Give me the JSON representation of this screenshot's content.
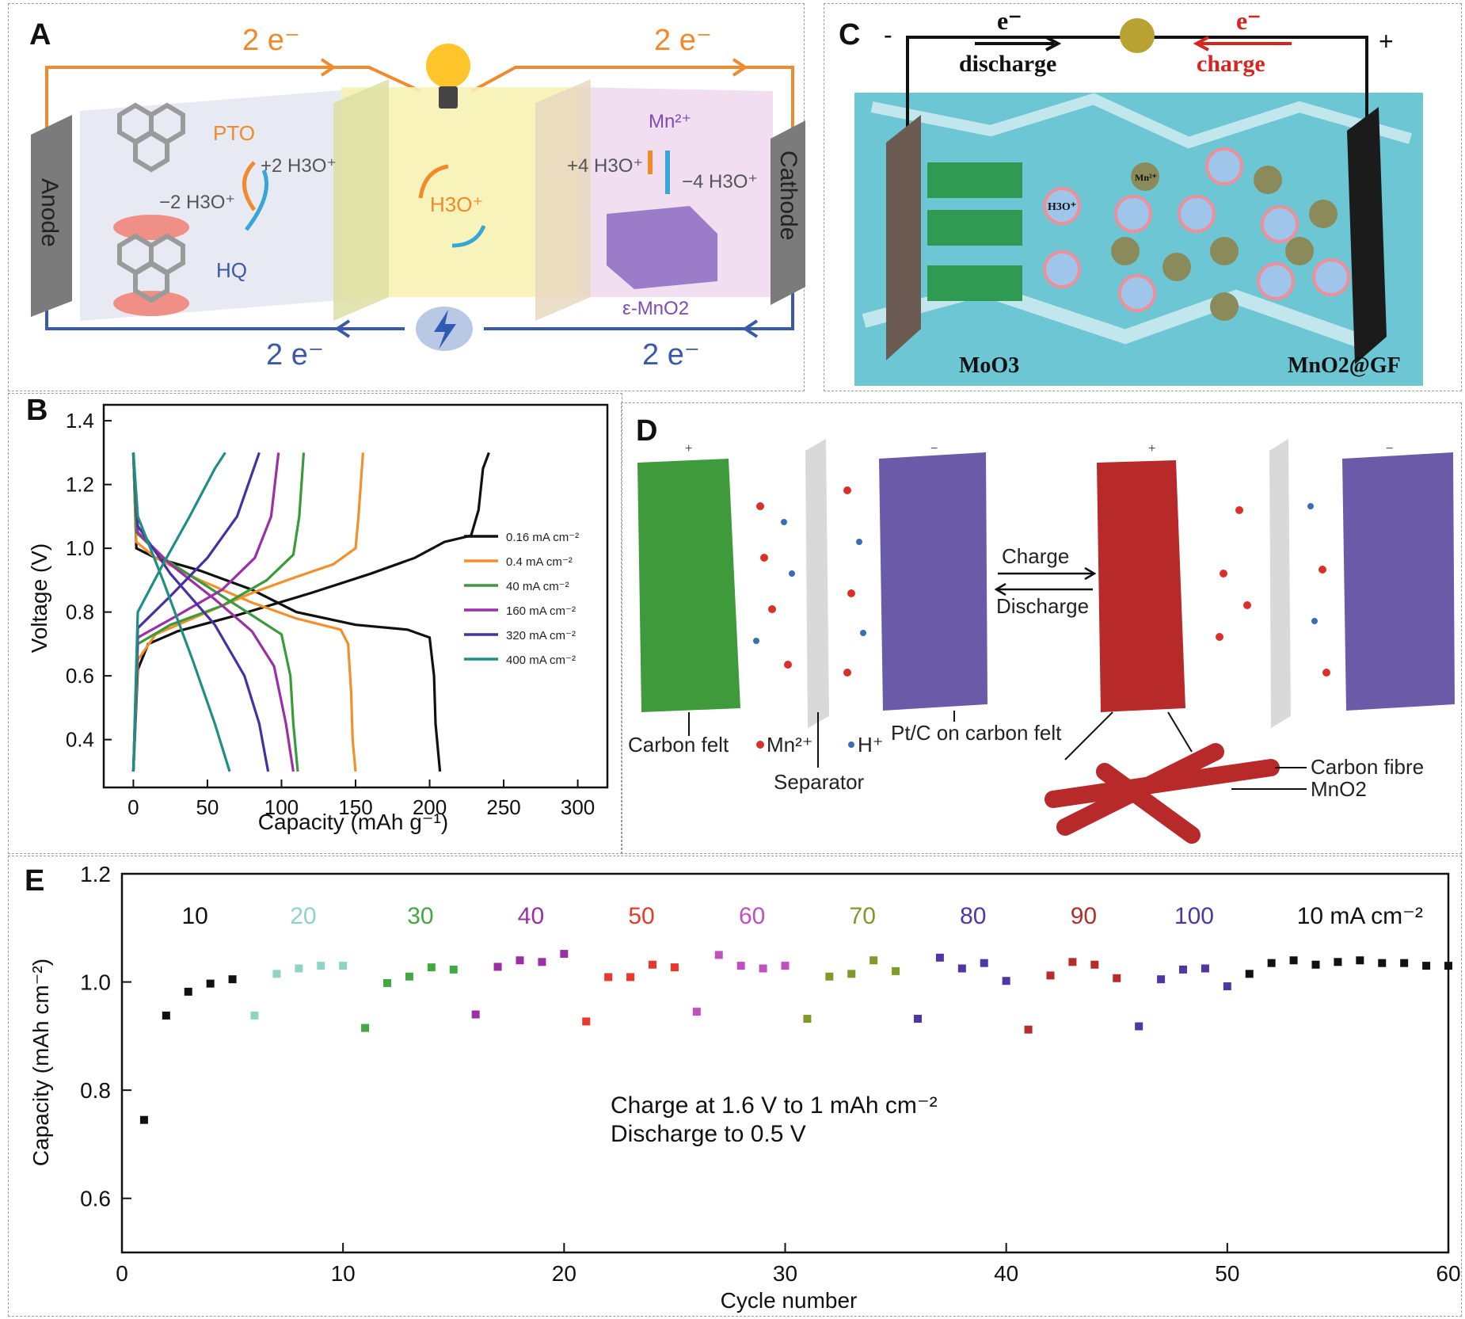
{
  "figure": {
    "panel_a": {
      "label": "A",
      "electron_top_left": "2 e⁻",
      "electron_top_right": "2 e⁻",
      "electron_bottom_left": "2 e⁻",
      "electron_bottom_right": "2 e⁻",
      "anode": "Anode",
      "cathode": "Cathode",
      "pto": "PTO",
      "hq": "HQ",
      "plus_2h3o": "+2 H3O⁺",
      "minus_2h3o": "−2 H3O⁺",
      "h3o": "H3O⁺",
      "mn2": "Mn²⁺",
      "plus_4h3o": "+4 H3O⁺",
      "minus_4h3o": "−4 H3O⁺",
      "mno2": "ε-MnO2"
    },
    "panel_b": {
      "label": "B",
      "xlabel": "Capacity (mAh g⁻¹)",
      "ylabel": "Voltage (V)"
    },
    "panel_c": {
      "label": "C",
      "minus": "-",
      "plus": "+",
      "e_left": "e⁻",
      "e_right": "e⁻",
      "discharge": "discharge",
      "charge": "charge",
      "moo3": "MoO3",
      "mno2gf": "MnO2@GF",
      "h3o": "H3O⁺",
      "mn": "Mn²⁺"
    },
    "panel_d": {
      "label": "D",
      "plus": "+",
      "minus": "−",
      "carbon_felt": "Carbon felt",
      "mn2": "Mn²⁺",
      "hplus": "H⁺",
      "separator": "Separator",
      "ptc": "Pt/C on carbon felt",
      "charge": "Charge",
      "discharge": "Discharge",
      "carbon_fibre": "Carbon fibre",
      "mno2": "MnO2"
    },
    "panel_e": {
      "label": "E",
      "xlabel": "Cycle number",
      "ylabel": "Capacity (mAh cm⁻²)",
      "annotation_line1": "Charge at 1.6 V to 1 mAh cm⁻²",
      "annotation_line2": "Discharge to 0.5 V"
    }
  },
  "colors": {
    "orange": "#f08a2c",
    "blue": "#3a59a8",
    "teal_water": "#68c3cf",
    "moo3_green": "#2f9a52",
    "red": "#cc2b25"
  },
  "chart_data": [
    {
      "type": "line",
      "panel": "B",
      "xlabel": "Capacity (mAh g⁻¹)",
      "ylabel": "Voltage (V)",
      "xlim": [
        -20,
        320
      ],
      "ylim": [
        0.25,
        1.45
      ],
      "xticks": [
        0,
        50,
        100,
        150,
        200,
        250,
        300
      ],
      "yticks": [
        0.4,
        0.6,
        0.8,
        1.0,
        1.2,
        1.4
      ],
      "legend_position": "right-center",
      "series": [
        {
          "name": "0.16 mA cm⁻²",
          "color": "#111111",
          "charge": [
            [
              0,
              0.3
            ],
            [
              3,
              0.62
            ],
            [
              10,
              0.7
            ],
            [
              30,
              0.74
            ],
            [
              70,
              0.79
            ],
            [
              120,
              0.86
            ],
            [
              160,
              0.92
            ],
            [
              190,
              0.97
            ],
            [
              210,
              1.02
            ],
            [
              228,
              1.04
            ],
            [
              233,
              1.12
            ],
            [
              236,
              1.25
            ],
            [
              240,
              1.3
            ]
          ],
          "discharge": [
            [
              0,
              1.3
            ],
            [
              2,
              1.0
            ],
            [
              15,
              0.97
            ],
            [
              45,
              0.93
            ],
            [
              80,
              0.87
            ],
            [
              110,
              0.8
            ],
            [
              150,
              0.76
            ],
            [
              185,
              0.745
            ],
            [
              200,
              0.72
            ],
            [
              203,
              0.6
            ],
            [
              204,
              0.45
            ],
            [
              207,
              0.3
            ]
          ]
        },
        {
          "name": "0.4 mA cm⁻²",
          "color": "#f2902c",
          "charge": [
            [
              0,
              0.3
            ],
            [
              3,
              0.65
            ],
            [
              15,
              0.73
            ],
            [
              45,
              0.79
            ],
            [
              80,
              0.86
            ],
            [
              110,
              0.91
            ],
            [
              135,
              0.95
            ],
            [
              150,
              1.0
            ],
            [
              152,
              1.1
            ],
            [
              155,
              1.3
            ]
          ],
          "discharge": [
            [
              0,
              1.3
            ],
            [
              2,
              1.02
            ],
            [
              15,
              0.97
            ],
            [
              45,
              0.9
            ],
            [
              80,
              0.83
            ],
            [
              110,
              0.78
            ],
            [
              140,
              0.745
            ],
            [
              145,
              0.7
            ],
            [
              147,
              0.55
            ],
            [
              148,
              0.4
            ],
            [
              150,
              0.3
            ]
          ]
        },
        {
          "name": "40 mA cm⁻²",
          "color": "#3b9a3b",
          "charge": [
            [
              0,
              0.3
            ],
            [
              3,
              0.7
            ],
            [
              25,
              0.76
            ],
            [
              60,
              0.82
            ],
            [
              90,
              0.9
            ],
            [
              108,
              0.98
            ],
            [
              112,
              1.1
            ],
            [
              115,
              1.3
            ]
          ],
          "discharge": [
            [
              0,
              1.3
            ],
            [
              2,
              1.05
            ],
            [
              20,
              0.97
            ],
            [
              50,
              0.88
            ],
            [
              80,
              0.79
            ],
            [
              100,
              0.73
            ],
            [
              106,
              0.6
            ],
            [
              108,
              0.45
            ],
            [
              111,
              0.3
            ]
          ]
        },
        {
          "name": "160 mA cm⁻²",
          "color": "#9b2fa6",
          "charge": [
            [
              0,
              0.3
            ],
            [
              3,
              0.72
            ],
            [
              30,
              0.79
            ],
            [
              60,
              0.87
            ],
            [
              82,
              0.97
            ],
            [
              93,
              1.1
            ],
            [
              98,
              1.3
            ]
          ],
          "discharge": [
            [
              0,
              1.3
            ],
            [
              3,
              1.05
            ],
            [
              25,
              0.95
            ],
            [
              55,
              0.84
            ],
            [
              80,
              0.74
            ],
            [
              95,
              0.63
            ],
            [
              103,
              0.45
            ],
            [
              108,
              0.3
            ]
          ]
        },
        {
          "name": "320 mA cm⁻²",
          "color": "#4a2fa0",
          "charge": [
            [
              0,
              0.3
            ],
            [
              3,
              0.75
            ],
            [
              25,
              0.85
            ],
            [
              50,
              0.97
            ],
            [
              70,
              1.1
            ],
            [
              85,
              1.3
            ]
          ],
          "discharge": [
            [
              0,
              1.3
            ],
            [
              3,
              1.07
            ],
            [
              25,
              0.92
            ],
            [
              55,
              0.76
            ],
            [
              75,
              0.6
            ],
            [
              85,
              0.45
            ],
            [
              91,
              0.3
            ]
          ]
        },
        {
          "name": "400 mA cm⁻²",
          "color": "#1f8e85",
          "charge": [
            [
              0,
              0.3
            ],
            [
              3,
              0.8
            ],
            [
              20,
              0.95
            ],
            [
              38,
              1.1
            ],
            [
              55,
              1.25
            ],
            [
              62,
              1.3
            ]
          ],
          "discharge": [
            [
              0,
              1.3
            ],
            [
              3,
              1.1
            ],
            [
              20,
              0.9
            ],
            [
              40,
              0.65
            ],
            [
              55,
              0.45
            ],
            [
              65,
              0.3
            ]
          ]
        }
      ]
    },
    {
      "type": "scatter",
      "panel": "E",
      "xlabel": "Cycle number",
      "ylabel": "Capacity (mAh cm⁻²)",
      "xlim": [
        0,
        60
      ],
      "ylim": [
        0.5,
        1.2
      ],
      "xticks": [
        0,
        10,
        20,
        30,
        40,
        50,
        60
      ],
      "yticks": [
        0.6,
        0.8,
        1.0,
        1.2
      ],
      "groups": [
        {
          "label": "10",
          "label_x": 3.3,
          "color": "#111111",
          "points": [
            [
              1,
              0.745
            ],
            [
              2,
              0.938
            ],
            [
              3,
              0.982
            ],
            [
              4,
              0.997
            ],
            [
              5,
              1.005
            ]
          ]
        },
        {
          "label": "20",
          "label_x": 8.2,
          "color": "#8fd3c7",
          "points": [
            [
              6,
              0.938
            ],
            [
              7,
              1.015
            ],
            [
              8,
              1.025
            ],
            [
              9,
              1.03
            ],
            [
              10,
              1.03
            ]
          ]
        },
        {
          "label": "30",
          "label_x": 13.5,
          "color": "#43a844",
          "points": [
            [
              11,
              0.915
            ],
            [
              12,
              0.998
            ],
            [
              13,
              1.01
            ],
            [
              14,
              1.027
            ],
            [
              15,
              1.023
            ]
          ]
        },
        {
          "label": "40",
          "label_x": 18.5,
          "color": "#9b2fa6",
          "points": [
            [
              16,
              0.94
            ],
            [
              17,
              1.028
            ],
            [
              18,
              1.04
            ],
            [
              19,
              1.037
            ],
            [
              20,
              1.052
            ]
          ]
        },
        {
          "label": "50",
          "label_x": 23.5,
          "color": "#e8392c",
          "points": [
            [
              21,
              0.927
            ],
            [
              22,
              1.009
            ],
            [
              23,
              1.009
            ],
            [
              24,
              1.032
            ],
            [
              25,
              1.027
            ]
          ]
        },
        {
          "label": "60",
          "label_x": 28.5,
          "color": "#c04fbf",
          "points": [
            [
              26,
              0.945
            ],
            [
              27,
              1.05
            ],
            [
              28,
              1.03
            ],
            [
              29,
              1.025
            ],
            [
              30,
              1.03
            ]
          ]
        },
        {
          "label": "70",
          "label_x": 33.5,
          "color": "#7f9a2a",
          "points": [
            [
              31,
              0.932
            ],
            [
              32,
              1.01
            ],
            [
              33,
              1.015
            ],
            [
              34,
              1.04
            ],
            [
              35,
              1.02
            ]
          ]
        },
        {
          "label": "80",
          "label_x": 38.5,
          "color": "#5035a4",
          "points": [
            [
              36,
              0.932
            ],
            [
              37,
              1.045
            ],
            [
              38,
              1.025
            ],
            [
              39,
              1.035
            ],
            [
              40,
              1.002
            ]
          ]
        },
        {
          "label": "90",
          "label_x": 43.5,
          "color": "#b82c2c",
          "points": [
            [
              41,
              0.912
            ],
            [
              42,
              1.012
            ],
            [
              43,
              1.037
            ],
            [
              44,
              1.032
            ],
            [
              45,
              1.007
            ]
          ]
        },
        {
          "label": "100",
          "label_x": 48.5,
          "color": "#5035a4",
          "points": [
            [
              46,
              0.918
            ],
            [
              47,
              1.005
            ],
            [
              48,
              1.023
            ],
            [
              49,
              1.025
            ],
            [
              50,
              0.992
            ]
          ]
        },
        {
          "label": "10 mA cm⁻²",
          "label_x": 56,
          "color": "#111111",
          "points": [
            [
              51,
              1.015
            ],
            [
              52,
              1.035
            ],
            [
              53,
              1.04
            ],
            [
              54,
              1.032
            ],
            [
              55,
              1.037
            ],
            [
              56,
              1.04
            ],
            [
              57,
              1.035
            ],
            [
              58,
              1.035
            ],
            [
              59,
              1.03
            ],
            [
              60,
              1.03
            ]
          ]
        }
      ]
    }
  ]
}
